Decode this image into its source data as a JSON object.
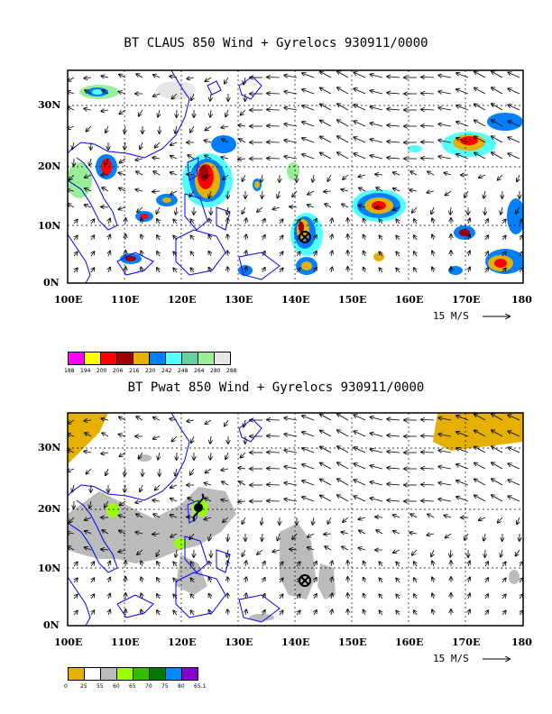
{
  "panel1": {
    "title": "BT CLAUS 850 Wind + Gyrelocs 930911/0000",
    "lat_labels": [
      "30N",
      "20N",
      "10N",
      "0N"
    ],
    "lon_labels": [
      "100E",
      "110E",
      "120E",
      "130E",
      "140E",
      "150E",
      "160E",
      "170E",
      "180"
    ],
    "scale_label": "15 M/S",
    "legend": {
      "labels": [
        "188",
        "194",
        "200",
        "206",
        "216",
        "230",
        "242",
        "248",
        "264",
        "280",
        "288"
      ],
      "colors": [
        "#ff00ff",
        "#ffff00",
        "#ff0000",
        "#a00000",
        "#e6b000",
        "#0080ff",
        "#55ffff",
        "#66d0a0",
        "#99ee99",
        "#e6e6e6"
      ]
    }
  },
  "panel2": {
    "title": "BT Pwat 850 Wind + Gyrelocs 930911/0000",
    "lat_labels": [
      "30N",
      "20N",
      "10N",
      "0N"
    ],
    "lon_labels": [
      "100E",
      "110E",
      "120E",
      "130E",
      "140E",
      "150E",
      "160E",
      "170E",
      "180"
    ],
    "scale_label": "15 M/S",
    "legend": {
      "labels": [
        "0",
        "25",
        "55",
        "60",
        "65",
        "70",
        "75",
        "80",
        "65.1"
      ],
      "colors": [
        "#e6b000",
        "#ffffff",
        "#bbbbbb",
        "#99ff00",
        "#33bb00",
        "#007700",
        "#0088ff",
        "#8800cc"
      ]
    }
  },
  "colors": {
    "coastline": "#0000ff",
    "grid": "#000000",
    "vector": "#000000"
  }
}
